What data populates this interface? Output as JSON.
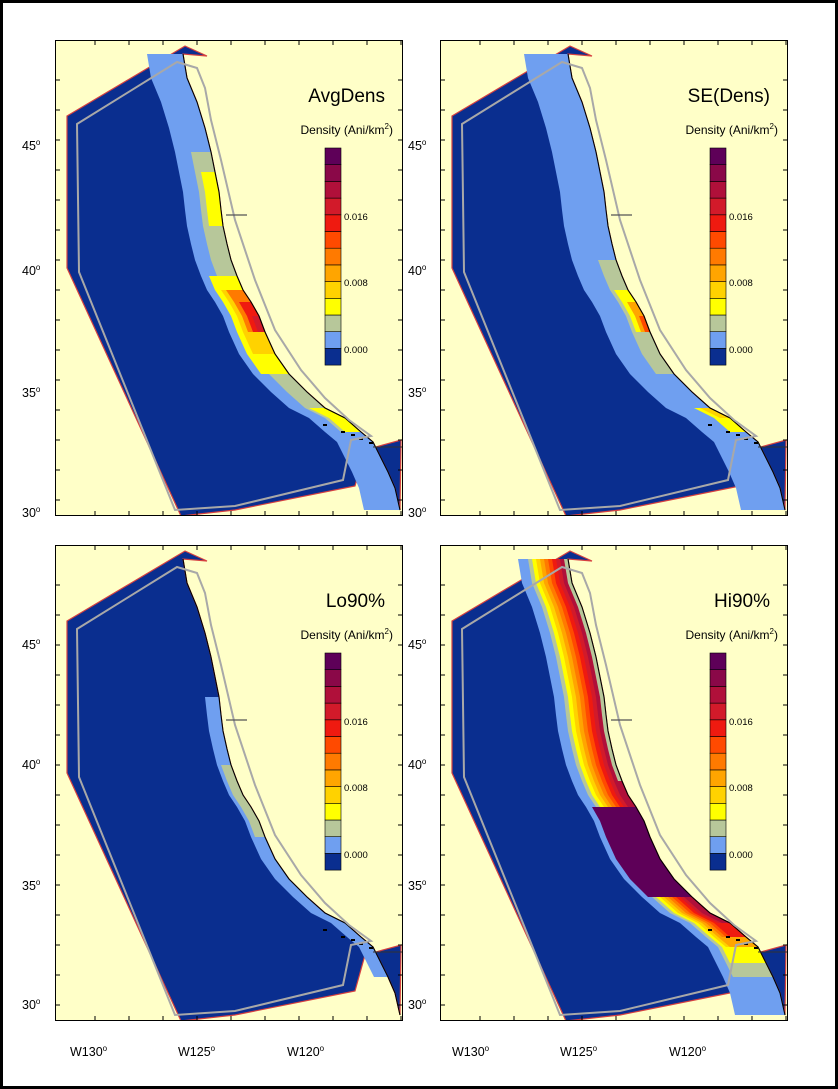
{
  "panels": [
    {
      "title": "AvgDens",
      "legend_title": "Density (Ani/km",
      "legend_sup": "2",
      "legend_close": ")",
      "pattern": "avg"
    },
    {
      "title": "SE(Dens)",
      "legend_title": "Density (Ani/km",
      "legend_sup": "2",
      "legend_close": ")",
      "pattern": "se"
    },
    {
      "title": "Lo90%",
      "legend_title": "Density (Ani/km",
      "legend_sup": "2",
      "legend_close": ")",
      "pattern": "lo"
    },
    {
      "title": "Hi90%",
      "legend_title": "Density (Ani/km",
      "legend_sup": "2",
      "legend_close": ")",
      "pattern": "hi"
    }
  ],
  "legend": {
    "tick_labels": [
      "0.000",
      "0.008",
      "0.016"
    ],
    "colors": [
      "#0a2e8f",
      "#6f9ff0",
      "#b7c79a",
      "#ffff00",
      "#ffd200",
      "#ffa500",
      "#ff7a00",
      "#ff4a00",
      "#ef1a10",
      "#d21a2a",
      "#b0103a",
      "#8a0848",
      "#5e0058"
    ]
  },
  "lat_labels": [
    {
      "deg": "45",
      "sym": "o"
    },
    {
      "deg": "40",
      "sym": "o"
    },
    {
      "deg": "35",
      "sym": "o"
    },
    {
      "deg": "30",
      "sym": "o"
    }
  ],
  "lon_labels": [
    {
      "deg": "W130",
      "sym": "o"
    },
    {
      "deg": "W125",
      "sym": "o"
    },
    {
      "deg": "W120",
      "sym": "o"
    }
  ],
  "colors": {
    "ocean": "#0a2e8f",
    "land": "#ffffc8",
    "boundary_inner": "#a8a8a8",
    "boundary_outer": "#d64040"
  }
}
